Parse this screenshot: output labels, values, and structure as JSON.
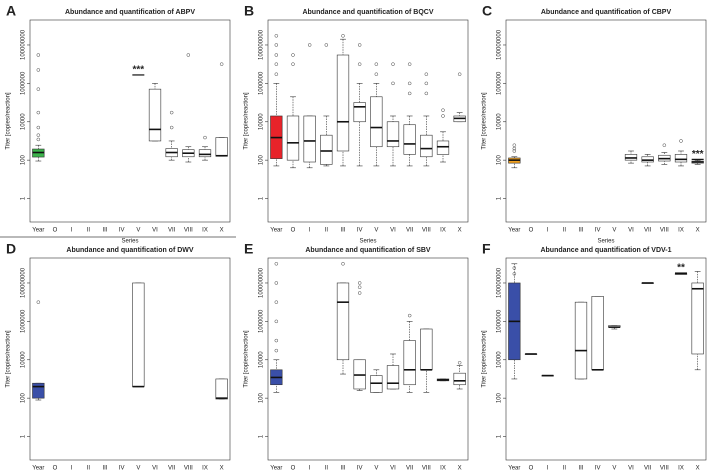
{
  "chart_data": [
    {
      "type": "box",
      "panel_label": "A",
      "title": "Abundance and quantification of ABPV",
      "x_label": "Series",
      "y_label": "Titer [copies/reaction]",
      "categories": [
        "Year",
        "O",
        "I",
        "II",
        "III",
        "IV",
        "V",
        "VI",
        "VII",
        "VIII",
        "IX",
        "X"
      ],
      "log": true,
      "ylim": [
        0.06,
        2000000000
      ],
      "yticks": [
        1,
        100,
        10000,
        1000000,
        100000000
      ],
      "boxes": [
        {
          "fill": "#3cb44b",
          "min": 90,
          "q1": 145,
          "median": 250,
          "q3": 380,
          "max": 600,
          "outliers": [
            1200,
            2000,
            5000,
            30000,
            500000,
            5000000,
            30000000
          ]
        },
        null,
        null,
        null,
        null,
        null,
        null,
        {
          "min": 1000,
          "q1": 1000,
          "median": 4000,
          "q3": 500000,
          "max": 1000000,
          "outliers": []
        },
        {
          "min": 100,
          "q1": 150,
          "median": 250,
          "q3": 400,
          "max": 1000,
          "outliers": [
            5000,
            30000
          ]
        },
        {
          "min": 80,
          "q1": 150,
          "median": 230,
          "q3": 350,
          "max": 500,
          "outliers": [
            30000000
          ]
        },
        {
          "min": 100,
          "q1": 150,
          "median": 200,
          "q3": 350,
          "max": 500,
          "outliers": [
            1500
          ]
        },
        {
          "min": 160,
          "q1": 160,
          "median": 170,
          "q3": 1500,
          "max": 1500,
          "outliers": [
            10000000
          ]
        }
      ],
      "annotations": [
        {
          "text": "***",
          "x": "V",
          "y": 5000000
        }
      ]
    },
    {
      "type": "box",
      "panel_label": "B",
      "title": "Abundance and quantification of BQCV",
      "x_label": "Series",
      "y_label": "Titer [copies/reaction]",
      "categories": [
        "Year",
        "O",
        "I",
        "II",
        "III",
        "IV",
        "V",
        "VI",
        "VII",
        "VIII",
        "IX",
        "X"
      ],
      "log": true,
      "ylim": [
        0.06,
        2000000000
      ],
      "yticks": [
        1,
        100,
        10000,
        1000000,
        100000000
      ],
      "boxes": [
        {
          "fill": "#e8232a",
          "min": 50,
          "q1": 120,
          "median": 1500,
          "q3": 20000,
          "max": 1000000,
          "outliers": [
            3000000,
            10000000,
            30000000,
            100000000,
            300000000
          ]
        },
        {
          "min": 40,
          "q1": 100,
          "median": 800,
          "q3": 20000,
          "max": 200000,
          "outliers": [
            10000000,
            30000000
          ]
        },
        {
          "min": 40,
          "q1": 80,
          "median": 1000,
          "q3": 20000,
          "max": 20000,
          "outliers": [
            100000000
          ]
        },
        {
          "min": 50,
          "q1": 60,
          "median": 300,
          "q3": 2000,
          "max": 20000,
          "outliers": [
            100000000
          ]
        },
        {
          "min": 50,
          "q1": 300,
          "median": 10000,
          "q3": 30000000,
          "max": 200000000,
          "outliers": [
            300000000
          ]
        },
        {
          "min": 50,
          "q1": 10000,
          "median": 60000,
          "q3": 100000,
          "max": 1000000,
          "outliers": [
            10000000,
            100000000
          ]
        },
        {
          "min": 50,
          "q1": 500,
          "median": 5000,
          "q3": 200000,
          "max": 1000000,
          "outliers": [
            3000000,
            10000000
          ]
        },
        {
          "min": 50,
          "q1": 500,
          "median": 1000,
          "q3": 10000,
          "max": 20000,
          "outliers": [
            1000000,
            10000000
          ]
        },
        {
          "min": 50,
          "q1": 200,
          "median": 700,
          "q3": 7000,
          "max": 20000,
          "outliers": [
            300000,
            1000000,
            10000000
          ]
        },
        {
          "min": 50,
          "q1": 150,
          "median": 400,
          "q3": 2000,
          "max": 20000,
          "outliers": [
            300000,
            1000000,
            3000000
          ]
        },
        {
          "min": 80,
          "q1": 200,
          "median": 500,
          "q3": 1000,
          "max": 3000,
          "outliers": [
            20000,
            40000
          ]
        },
        {
          "min": 10000,
          "q1": 10000,
          "median": 15000,
          "q3": 20000,
          "max": 30000,
          "outliers": [
            3000000
          ]
        }
      ],
      "annotations": []
    },
    {
      "type": "box",
      "panel_label": "C",
      "title": "Abundance and quantification of CBPV",
      "x_label": "Series",
      "y_label": "Titer [copies/reaction]",
      "categories": [
        "Year",
        "O",
        "I",
        "II",
        "III",
        "IV",
        "V",
        "VI",
        "VII",
        "VIII",
        "IX",
        "X"
      ],
      "log": true,
      "ylim": [
        0.06,
        2000000000
      ],
      "yticks": [
        1,
        100,
        10000,
        1000000,
        100000000
      ],
      "boxes": [
        {
          "fill": "#f0a020",
          "min": 40,
          "q1": 70,
          "median": 100,
          "q3": 130,
          "max": 150,
          "outliers": [
            300,
            400,
            600
          ]
        },
        null,
        null,
        null,
        null,
        null,
        null,
        {
          "min": 70,
          "q1": 100,
          "median": 130,
          "q3": 200,
          "max": 300,
          "outliers": []
        },
        {
          "min": 50,
          "q1": 80,
          "median": 100,
          "q3": 150,
          "max": 200,
          "outliers": []
        },
        {
          "min": 60,
          "q1": 90,
          "median": 120,
          "q3": 180,
          "max": 250,
          "outliers": [
            600
          ]
        },
        {
          "min": 50,
          "q1": 80,
          "median": 110,
          "q3": 200,
          "max": 300,
          "outliers": [
            1000
          ]
        },
        {
          "min": 60,
          "q1": 70,
          "median": 80,
          "q3": 90,
          "max": 100,
          "outliers": []
        }
      ],
      "annotations": [
        {
          "text": "***",
          "x": "X",
          "y": 200
        }
      ]
    },
    {
      "type": "box",
      "panel_label": "D",
      "title": "Abundance and quantification of DWV",
      "x_label": "Series",
      "y_label": "Titer [copies/reaction]",
      "categories": [
        "Year",
        "O",
        "I",
        "II",
        "III",
        "IV",
        "V",
        "VI",
        "VII",
        "VIII",
        "IX",
        "X"
      ],
      "log": true,
      "ylim": [
        0.06,
        2000000000
      ],
      "yticks": [
        1,
        100,
        10000,
        1000000,
        100000000
      ],
      "boxes": [
        {
          "fill": "#3a4fa8",
          "min": 80,
          "q1": 100,
          "median": 400,
          "q3": 600,
          "max": 600,
          "outliers": [
            10000000
          ]
        },
        null,
        null,
        null,
        null,
        null,
        {
          "min": 400,
          "q1": 400,
          "median": 400,
          "q3": 100000000,
          "max": 100000000,
          "outliers": []
        },
        null,
        null,
        null,
        null,
        {
          "min": 90,
          "q1": 90,
          "median": 100,
          "q3": 1000,
          "max": 1000,
          "outliers": []
        }
      ],
      "annotations": []
    },
    {
      "type": "box",
      "panel_label": "E",
      "title": "Abundance and quantification of SBV",
      "x_label": "Series",
      "y_label": "Titer [copies/reaction]",
      "categories": [
        "Year",
        "O",
        "I",
        "II",
        "III",
        "IV",
        "V",
        "VI",
        "VII",
        "VIII",
        "IX",
        "X"
      ],
      "log": true,
      "ylim": [
        0.06,
        2000000000
      ],
      "yticks": [
        1,
        100,
        10000,
        1000000,
        100000000
      ],
      "boxes": [
        {
          "fill": "#3a4fa8",
          "min": 200,
          "q1": 500,
          "median": 1200,
          "q3": 3000,
          "max": 10000,
          "outliers": [
            30000,
            100000,
            1000000,
            10000000,
            100000000,
            1000000000
          ]
        },
        null,
        null,
        null,
        {
          "min": 1800,
          "q1": 10000,
          "median": 10000000,
          "q3": 100000000,
          "max": 100000000,
          "outliers": [
            1000000000
          ]
        },
        {
          "min": 250,
          "q1": 300,
          "median": 1600,
          "q3": 10000,
          "max": 10000,
          "outliers": [
            30000000,
            60000000,
            100000000
          ]
        },
        {
          "min": 200,
          "q1": 200,
          "median": 600,
          "q3": 1500,
          "max": 3000,
          "outliers": []
        },
        {
          "min": 300,
          "q1": 300,
          "median": 600,
          "q3": 5000,
          "max": 20000,
          "outliers": []
        },
        {
          "min": 200,
          "q1": 500,
          "median": 3000,
          "q3": 100000,
          "max": 1000000,
          "outliers": [
            2000000
          ]
        },
        {
          "min": 200,
          "q1": 3000,
          "median": 3000,
          "q3": 400000,
          "max": 400000,
          "outliers": []
        },
        {
          "min": 800,
          "q1": 800,
          "median": 900,
          "q3": 1000,
          "max": 1000,
          "outliers": []
        },
        {
          "min": 300,
          "q1": 500,
          "median": 800,
          "q3": 2000,
          "max": 5000,
          "outliers": [
            7000
          ]
        }
      ],
      "annotations": []
    },
    {
      "type": "box",
      "panel_label": "F",
      "title": "Abundance and quantification of VDV-1",
      "x_label": "Series",
      "y_label": "Titer [copies/reaction]",
      "categories": [
        "Year",
        "O",
        "I",
        "II",
        "III",
        "IV",
        "V",
        "VI",
        "VII",
        "VIII",
        "IX",
        "X"
      ],
      "log": true,
      "ylim": [
        0.06,
        2000000000
      ],
      "yticks": [
        1,
        100,
        10000,
        1000000,
        100000000
      ],
      "boxes": [
        {
          "fill": "#3a4fa8",
          "min": 1000,
          "q1": 10000,
          "median": 1000000,
          "q3": 100000000,
          "max": 1000000000,
          "outliers": [
            300000000,
            600000000
          ]
        },
        {
          "min": 20000,
          "q1": 20000,
          "median": 20000,
          "q3": 20000,
          "max": 20000,
          "outliers": []
        },
        {
          "min": 1500,
          "q1": 1500,
          "median": 1500,
          "q3": 1500,
          "max": 1500,
          "outliers": []
        },
        null,
        {
          "min": 1000,
          "q1": 1000,
          "median": 30000,
          "q3": 10000000,
          "max": 10000000,
          "outliers": []
        },
        {
          "min": 3000,
          "q1": 3000,
          "median": 3000,
          "q3": 20000000,
          "max": 20000000,
          "outliers": []
        },
        {
          "min": 400000,
          "q1": 500000,
          "median": 500000,
          "q3": 600000,
          "max": 600000,
          "outliers": []
        },
        null,
        {
          "min": 100000000,
          "q1": 100000000,
          "median": 100000000,
          "q3": 100000000,
          "max": 100000000,
          "outliers": []
        },
        null,
        {
          "min": 300000000,
          "q1": 300000000,
          "median": 300000000,
          "q3": 300000000,
          "max": 300000000,
          "outliers": []
        },
        {
          "min": 3000,
          "q1": 20000,
          "median": 50000000,
          "q3": 100000000,
          "max": 400000000,
          "outliers": []
        }
      ],
      "annotations": [
        {
          "text": "**",
          "x": "IX",
          "y": 600000000
        }
      ]
    }
  ]
}
